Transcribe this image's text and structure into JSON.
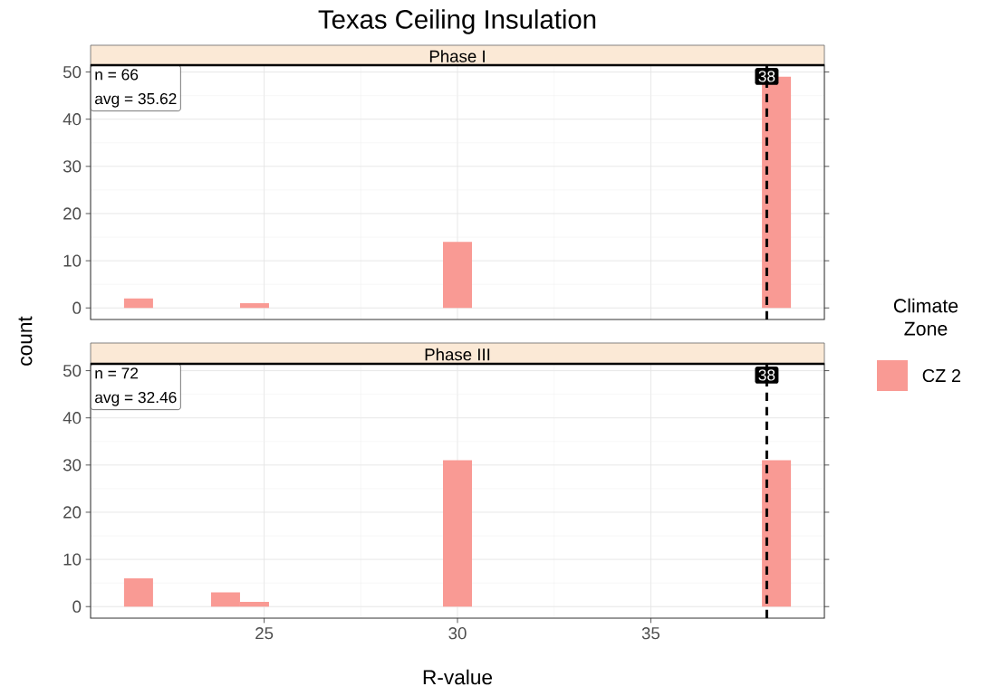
{
  "chart_data": [
    {
      "type": "histogram",
      "title": "Texas Ceiling Insulation",
      "subtitle": "Phase I",
      "ylabel": "count",
      "bins": [
        21.375,
        22.125,
        22.875,
        23.625,
        24.375,
        25.125,
        25.875,
        26.625,
        27.375,
        28.125,
        28.875,
        29.625,
        30.375,
        31.125,
        31.875,
        32.625,
        33.375,
        34.125,
        34.875,
        35.625,
        36.375,
        37.125,
        37.875,
        38.625
      ],
      "series": [
        {
          "color": "#f99a94",
          "values": [
            2,
            0,
            0,
            0,
            1,
            0,
            0,
            0,
            0,
            0,
            0,
            14,
            0,
            0,
            0,
            0,
            0,
            0,
            0,
            0,
            0,
            0,
            49
          ]
        }
      ],
      "xlim": [
        20.51,
        39.49
      ],
      "ylim": [
        -2.45,
        51.45
      ],
      "xticks": [
        25,
        30,
        35
      ],
      "yticks": [
        0,
        10,
        20,
        30,
        40,
        50
      ],
      "grid": true,
      "tick_labels": "y",
      "ref_lines": [
        {
          "axis": "x",
          "value": 38,
          "label": "38",
          "color": "#000000",
          "line_style": "dashed"
        }
      ],
      "annotations": [
        "n = 66",
        "avg = 35.62"
      ]
    },
    {
      "type": "histogram",
      "subtitle": "Phase III",
      "xlabel": "R-value",
      "legend_title": "Climate Zone",
      "legend": "right",
      "bins": [
        21.375,
        22.125,
        22.875,
        23.625,
        24.375,
        25.125,
        25.875,
        26.625,
        27.375,
        28.125,
        28.875,
        29.625,
        30.375,
        31.125,
        31.875,
        32.625,
        33.375,
        34.125,
        34.875,
        35.625,
        36.375,
        37.125,
        37.875,
        38.625
      ],
      "series": [
        {
          "name": "CZ 2",
          "color": "#f99a94",
          "values": [
            6,
            0,
            0,
            3,
            1,
            0,
            0,
            0,
            0,
            0,
            0,
            31,
            0,
            0,
            0,
            0,
            0,
            0,
            0,
            0,
            0,
            0,
            31
          ]
        }
      ],
      "xlim": [
        20.51,
        39.49
      ],
      "ylim": [
        -2.45,
        51.45
      ],
      "xticks": [
        25,
        30,
        35
      ],
      "yticks": [
        0,
        10,
        20,
        30,
        40,
        50
      ],
      "grid": true,
      "ref_lines": [
        {
          "axis": "x",
          "value": 38,
          "label": "38",
          "color": "#000000",
          "line_style": "dashed"
        }
      ],
      "annotations": [
        "n = 72",
        "avg = 32.46"
      ]
    }
  ]
}
